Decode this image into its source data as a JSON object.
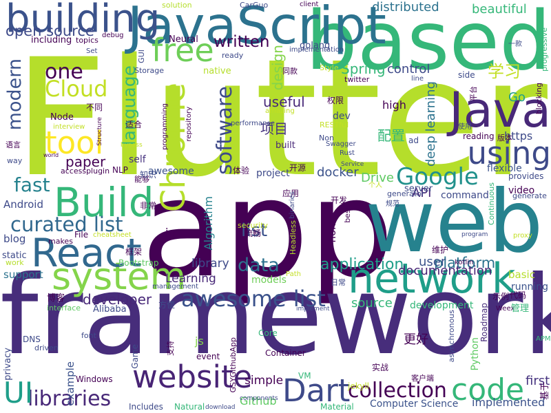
{
  "words": [
    {
      "t": "Flutter",
      "c": "#b5de2b"
    },
    {
      "t": "app",
      "c": "#440154"
    },
    {
      "t": "framework",
      "c": "#472d7b"
    },
    {
      "t": "web",
      "c": "#26828e"
    },
    {
      "t": "based",
      "c": "#35b779"
    },
    {
      "t": "JavaScript",
      "c": "#2c728e"
    },
    {
      "t": "building",
      "c": "#3b528b"
    },
    {
      "t": "free",
      "c": "#6ece58"
    },
    {
      "t": "Java",
      "c": "#482878"
    },
    {
      "t": "Chrome",
      "c": "#b5de2b"
    },
    {
      "t": "network",
      "c": "#1f9e89"
    },
    {
      "t": "system",
      "c": "#84d44b"
    },
    {
      "t": "React",
      "c": "#31688e"
    },
    {
      "t": "Build",
      "c": "#35b779"
    },
    {
      "t": "website",
      "c": "#482475"
    },
    {
      "t": "Dart",
      "c": "#3e4a89"
    },
    {
      "t": "code",
      "c": "#35b779"
    },
    {
      "t": "collection",
      "c": "#440154"
    },
    {
      "t": "libraries",
      "c": "#482878"
    },
    {
      "t": "UI",
      "c": "#1f9e89"
    },
    {
      "t": "awesome list",
      "c": "#3b528b"
    },
    {
      "t": "curated list",
      "c": "#31688e"
    },
    {
      "t": "Google",
      "c": "#21918c"
    },
    {
      "t": "using",
      "c": "#3e4a89"
    },
    {
      "t": "tool",
      "c": "#fde725"
    },
    {
      "t": "one",
      "c": "#440154"
    },
    {
      "t": "Cloud",
      "c": "#c2df23"
    },
    {
      "t": "language",
      "c": "#35b779"
    },
    {
      "t": "software",
      "c": "#3e4a89"
    },
    {
      "t": "modern",
      "c": "#3b528b"
    },
    {
      "t": "open source",
      "c": "#3e4a89"
    },
    {
      "t": "written",
      "c": "#440154"
    },
    {
      "t": "data",
      "c": "#2c728e"
    },
    {
      "t": "list",
      "c": "#3b528b"
    },
    {
      "t": "fast",
      "c": "#26828e"
    },
    {
      "t": "application",
      "c": "#1f9e89"
    },
    {
      "t": "platform",
      "c": "#2c728e"
    },
    {
      "t": "developer",
      "c": "#482878"
    },
    {
      "t": "source",
      "c": "#35b779"
    },
    {
      "t": "user",
      "c": "#3b528b"
    },
    {
      "t": "documentation",
      "c": "#482475"
    },
    {
      "t": "paper",
      "c": "#440154"
    },
    {
      "t": "Spring",
      "c": "#35b779"
    },
    {
      "t": "control",
      "c": "#3e4a89"
    },
    {
      "t": "distributed",
      "c": "#2c728e"
    },
    {
      "t": "beautiful",
      "c": "#35b779"
    },
    {
      "t": "design",
      "c": "#84d44b"
    },
    {
      "t": "学习",
      "c": "#c2df23"
    },
    {
      "t": "Go",
      "c": "#1f9e89"
    },
    {
      "t": "项目",
      "c": "#46337f"
    },
    {
      "t": "配置",
      "c": "#35b779"
    },
    {
      "t": "useful",
      "c": "#482878"
    },
    {
      "t": "docker",
      "c": "#3b528b"
    },
    {
      "t": "Drive",
      "c": "#5ec962"
    },
    {
      "t": "API",
      "c": "#482878"
    },
    {
      "t": "Android",
      "c": "#3e4a89"
    },
    {
      "t": "Algorithm",
      "c": "#26828e"
    },
    {
      "t": "io",
      "c": "#440154"
    },
    {
      "t": "library",
      "c": "#3e4a89"
    },
    {
      "t": "Learning",
      "c": "#482878"
    },
    {
      "t": "models",
      "c": "#6ece58"
    },
    {
      "t": "support",
      "c": "#2c728e"
    },
    {
      "t": "basic",
      "c": "#b5de2b"
    },
    {
      "t": "running",
      "c": "#3b528b"
    },
    {
      "t": "development",
      "c": "#35b779"
    },
    {
      "t": "flexible",
      "c": "#3b528b"
    },
    {
      "t": "deep learning",
      "c": "#2c728e"
    },
    {
      "t": "high",
      "c": "#440154"
    },
    {
      "t": "https",
      "c": "#3e4a89"
    },
    {
      "t": "Github",
      "c": "#5ec962"
    },
    {
      "t": "simple",
      "c": "#440154"
    },
    {
      "t": "example",
      "c": "#3b528b"
    },
    {
      "t": "first",
      "c": "#46337f"
    },
    {
      "t": "implemented",
      "c": "#3b528b"
    },
    {
      "t": "Computer Science",
      "c": "#3b528b"
    },
    {
      "t": "Python",
      "c": "#5ec962"
    },
    {
      "t": "GSYGithubApp",
      "c": "#440154"
    },
    {
      "t": "更好",
      "c": "#440154"
    },
    {
      "t": "Roadmap",
      "c": "#472d7b"
    },
    {
      "t": "self",
      "c": "#46337f"
    },
    {
      "t": "awesome",
      "c": "#3b528b"
    },
    {
      "t": "project",
      "c": "#3e4a89"
    },
    {
      "t": "dev",
      "c": "#3e4a89"
    },
    {
      "t": "Node",
      "c": "#440154"
    },
    {
      "t": "native",
      "c": "#b5de2b"
    },
    {
      "t": "Neural",
      "c": "#440154"
    },
    {
      "t": "golang",
      "c": "#3e4a89"
    },
    {
      "t": "built",
      "c": "#482878"
    },
    {
      "t": "ready",
      "c": "#3e4a89"
    },
    {
      "t": "topics",
      "c": "#440154"
    },
    {
      "t": "including",
      "c": "#440154"
    },
    {
      "t": "blog",
      "c": "#3e4a89"
    },
    {
      "t": "makes",
      "c": "#440154"
    },
    {
      "t": "File",
      "c": "#440154"
    },
    {
      "t": "static",
      "c": "#3e4a89"
    },
    {
      "t": "work",
      "c": "#b5de2b"
    },
    {
      "t": "interface",
      "c": "#5ec962"
    },
    {
      "t": "Alibaba",
      "c": "#3e4a89"
    },
    {
      "t": "privacy",
      "c": "#3e4a89"
    },
    {
      "t": "Windows",
      "c": "#440154"
    },
    {
      "t": "Natural",
      "c": "#35b779"
    },
    {
      "t": "Includes",
      "c": "#3e4a89"
    },
    {
      "t": "Material",
      "c": "#35b779"
    },
    {
      "t": "Container",
      "c": "#440154"
    },
    {
      "t": "Core",
      "c": "#35b779"
    },
    {
      "t": "event",
      "c": "#440154"
    },
    {
      "t": "Game",
      "c": "#3e4a89"
    },
    {
      "t": "font",
      "c": "#3e4a89"
    },
    {
      "t": "js",
      "c": "#84d44b"
    },
    {
      "t": "Bootstrap",
      "c": "#5ec962"
    },
    {
      "t": "security",
      "c": "#c2df23"
    },
    {
      "t": "Headless",
      "c": "#b5de2b"
    },
    {
      "t": "home",
      "c": "#440154"
    },
    {
      "t": "best",
      "c": "#440154"
    },
    {
      "t": "server",
      "c": "#3e4a89"
    },
    {
      "t": "generator",
      "c": "#3e4a89"
    },
    {
      "t": "command",
      "c": "#3e4a89"
    },
    {
      "t": "video",
      "c": "#440154"
    },
    {
      "t": "provides",
      "c": "#3e4a89"
    },
    {
      "t": "generate",
      "c": "#3e4a89"
    },
    {
      "t": "Continuous",
      "c": "#35b779"
    },
    {
      "t": "asynchronous",
      "c": "#3e4a89"
    },
    {
      "t": "Weex",
      "c": "#440154"
    },
    {
      "t": "管理",
      "c": "#35b779"
    },
    {
      "t": "示例",
      "c": "#440154"
    },
    {
      "t": "代码",
      "c": "#440154"
    },
    {
      "t": "APM",
      "c": "#35b779"
    },
    {
      "t": "基于",
      "c": "#440154"
    },
    {
      "t": "实战",
      "c": "#440154"
    },
    {
      "t": "客户端",
      "c": "#440154"
    },
    {
      "t": "jekyll",
      "c": "#c2df23"
    },
    {
      "t": "VM",
      "c": "#35b779"
    },
    {
      "t": "DNS",
      "c": "#3e4a89"
    },
    {
      "t": "driven",
      "c": "#3e4a89"
    },
    {
      "t": "支持",
      "c": "#440154"
    },
    {
      "t": "方便",
      "c": "#3e4a89"
    },
    {
      "t": "博客",
      "c": "#440154"
    },
    {
      "t": "框架",
      "c": "#440154"
    },
    {
      "t": "非常",
      "c": "#440154"
    },
    {
      "t": "能够",
      "c": "#440154"
    },
    {
      "t": "知识",
      "c": "#3e4a89"
    },
    {
      "t": "体验",
      "c": "#440154"
    },
    {
      "t": "开源",
      "c": "#440154"
    },
    {
      "t": "应用",
      "c": "#440154"
    },
    {
      "t": "开发",
      "c": "#440154"
    },
    {
      "t": "流畅",
      "c": "#440154"
    },
    {
      "t": "维护",
      "c": "#440154"
    },
    {
      "t": "日常",
      "c": "#3e4a89"
    },
    {
      "t": "权限",
      "c": "#440154"
    },
    {
      "t": "同款",
      "c": "#440154"
    },
    {
      "t": "语言",
      "c": "#440154"
    },
    {
      "t": "不同",
      "c": "#440154"
    },
    {
      "t": "适合",
      "c": "#440154"
    },
    {
      "t": "版本",
      "c": "#440154"
    },
    {
      "t": "平台",
      "c": "#440154"
    },
    {
      "t": "使用",
      "c": "#3e4a89"
    },
    {
      "t": "一款",
      "c": "#3e4a89"
    },
    {
      "t": "个人",
      "c": "#c2df23"
    },
    {
      "t": "规范",
      "c": "#3e4a89"
    },
    {
      "t": "twitter",
      "c": "#440154"
    },
    {
      "t": "RESTful",
      "c": "#c2df23"
    },
    {
      "t": "Style",
      "c": "#c2df23"
    },
    {
      "t": "Non",
      "c": "#3e4a89"
    },
    {
      "t": "Swagger",
      "c": "#3e4a89"
    },
    {
      "t": "Rust",
      "c": "#3e4a89"
    },
    {
      "t": "Service",
      "c": "#3e4a89"
    },
    {
      "t": "ad",
      "c": "#3e4a89"
    },
    {
      "t": "reading",
      "c": "#440154"
    },
    {
      "t": "blocking",
      "c": "#440154"
    },
    {
      "t": "progressive",
      "c": "#35b779"
    },
    {
      "t": "side",
      "c": "#3e4a89"
    },
    {
      "t": "line",
      "c": "#3e4a89"
    },
    {
      "t": "client",
      "c": "#440154"
    },
    {
      "t": "implementation",
      "c": "#3e4a89"
    },
    {
      "t": "CarGuo",
      "c": "#3e4a89"
    },
    {
      "t": "solution",
      "c": "#b5de2b"
    },
    {
      "t": "debug",
      "c": "#440154"
    },
    {
      "t": "Set",
      "c": "#3e4a89"
    },
    {
      "t": "GUI",
      "c": "#3e4a89"
    },
    {
      "t": "Storage",
      "c": "#3e4a89"
    },
    {
      "t": "programming",
      "c": "#440154"
    },
    {
      "t": "repository",
      "c": "#440154"
    },
    {
      "t": "amazing",
      "c": "#c2df23"
    },
    {
      "t": "performance",
      "c": "#3e4a89"
    },
    {
      "t": "interview",
      "c": "#c2df23"
    },
    {
      "t": "Structure",
      "c": "#440154"
    },
    {
      "t": "bypass",
      "c": "#c2df23"
    },
    {
      "t": "world",
      "c": "#440154"
    },
    {
      "t": "way",
      "c": "#3e4a89"
    },
    {
      "t": "accessplugin",
      "c": "#440154"
    },
    {
      "t": "NLP",
      "c": "#440154"
    },
    {
      "t": "binaries",
      "c": "#3e4a89"
    },
    {
      "t": "cheatsheet",
      "c": "#c2df23"
    },
    {
      "t": "Path",
      "c": "#c2df23"
    },
    {
      "t": "management",
      "c": "#3e4a89"
    },
    {
      "t": "implement",
      "c": "#3e4a89"
    },
    {
      "t": "components",
      "c": "#3e4a89"
    },
    {
      "t": "download",
      "c": "#3e4a89"
    },
    {
      "t": "program",
      "c": "#3e4a89"
    },
    {
      "t": "kotlin",
      "c": "#440154"
    },
    {
      "t": "proxy",
      "c": "#c2df23"
    }
  ]
}
